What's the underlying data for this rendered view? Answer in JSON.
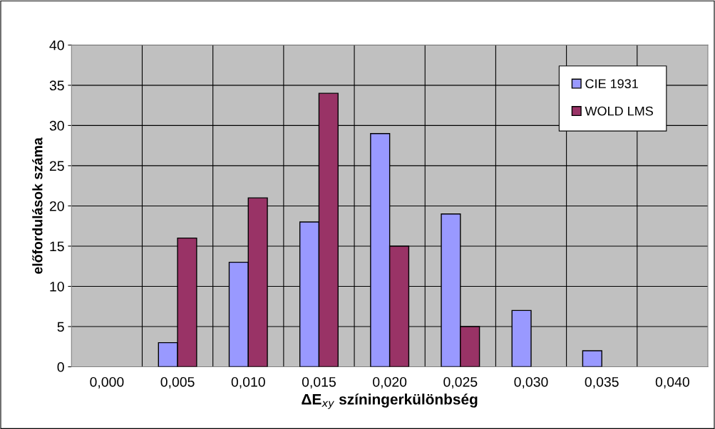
{
  "chart_data": {
    "type": "bar",
    "xlabel": "ΔE$_{xy}$ színingerkülönbség",
    "ylabel": "előfordulások száma",
    "categories": [
      "0,000",
      "0,005",
      "0,010",
      "0,015",
      "0,020",
      "0,025",
      "0,030",
      "0,035",
      "0,040"
    ],
    "series": [
      {
        "name": "CIE 1931",
        "color": "#9999ff",
        "values": [
          0,
          3,
          13,
          18,
          29,
          19,
          7,
          2,
          0
        ]
      },
      {
        "name": "WOLD LMS",
        "color": "#993366",
        "values": [
          0,
          16,
          21,
          34,
          15,
          5,
          0,
          0,
          0
        ]
      }
    ],
    "ylim": [
      0,
      40
    ],
    "yticks": [
      0,
      5,
      10,
      15,
      20,
      25,
      30,
      35,
      40
    ],
    "grid": true,
    "legend": "top right"
  }
}
